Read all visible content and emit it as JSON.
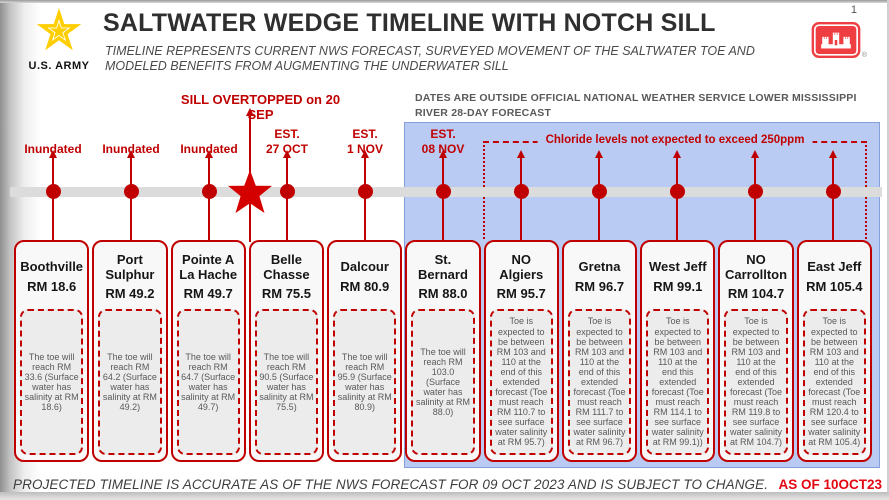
{
  "page": {
    "number": "1"
  },
  "header": {
    "army_label": "U.S. ARMY",
    "title": "SALTWATER WEDGE TIMELINE WITH NOTCH SILL",
    "subtitle_line1": "TIMELINE REPRESENTS CURRENT NWS FORECAST, SURVEYED MOVEMENT OF THE SALTWATER TOE AND",
    "subtitle_line2": "MODELED BENEFITS FROM AUGMENTING THE UNDERWATER SILL"
  },
  "annotations": {
    "sill_overtopped": "SILL OVERTOPPED on 20 SEP",
    "nws_note": "DATES ARE OUTSIDE OFFICIAL NATIONAL WEATHER SERVICE LOWER MISSISSIPPI RIVER 28-DAY FORECAST",
    "chloride_note": "Chloride levels not expected to exceed 250ppm"
  },
  "footer": {
    "disclaimer": "PROJECTED TIMELINE IS ACCURATE AS OF THE NWS FORECAST FOR 09 OCT 2023 AND IS SUBJECT TO CHANGE.",
    "as_of": "AS OF 10OCT23"
  },
  "colors": {
    "accent_red": "#c00000",
    "forecast_zone_blue": "#b9cbf2",
    "timeline_gray": "#dcdcdc",
    "army_gold": "#ffce00",
    "usace_red": "#ef3e42"
  },
  "timeline": {
    "locations": [
      {
        "name": "Boothville",
        "rm": "RM 18.6",
        "marker_label": "Inundated",
        "note": "The toe will reach RM 33.6 (Surface water has salinity at RM 18.6)"
      },
      {
        "name": "Port Sulphur",
        "rm": "RM 49.2",
        "marker_label": "Inundated",
        "note": "The toe will reach RM 64.2 (Surface water has salinity at RM 49.2)"
      },
      {
        "name": "Pointe A La Hache",
        "rm": "RM 49.7",
        "marker_label": "Inundated",
        "note": "The toe will reach RM 64.7 (Surface water has salinity at RM 49.7)"
      },
      {
        "name": "Belle Chasse",
        "rm": "RM 75.5",
        "marker_label": "EST.\n27 OCT",
        "note": "The toe will reach RM 90.5 (Surface water has salinity at RM 75.5)"
      },
      {
        "name": "Dalcour",
        "rm": "RM 80.9",
        "marker_label": "EST.\n1 NOV",
        "note": "The toe will reach RM 95.9 (Surface water has salinity at RM 80.9)"
      },
      {
        "name": "St. Bernard",
        "rm": "RM 88.0",
        "marker_label": "EST.\n08 NOV",
        "note": "The toe will reach RM 103.0 (Surface water has salinity at RM 88.0)"
      },
      {
        "name": "NO Algiers",
        "rm": "RM 95.7",
        "marker_label": "",
        "note": "Toe is expected to be between RM 103 and 110 at the end of this extended forecast (Toe must reach RM 110.7 to see surface water salinity at RM 95.7)"
      },
      {
        "name": "Gretna",
        "rm": "RM 96.7",
        "marker_label": "",
        "note": "Toe is expected to be between RM 103 and 110 at the end of this extended forecast (Toe must reach RM 111.7 to see surface water salinity at RM 96.7)"
      },
      {
        "name": "West Jeff",
        "rm": "RM 99.1",
        "marker_label": "",
        "note": "Toe is expected to be between RM 103 and 110 at the end this extended forecast (Toe must reach RM 114.1 to see surface water salinity at RM 99.1))"
      },
      {
        "name": "NO Carrollton",
        "rm": "RM 104.7",
        "marker_label": "",
        "note": "Toe is expected to be between RM 103 and 110 at the end of this extended forecast (Toe must reach RM 119.8 to see surface water salinity at RM 104.7)"
      },
      {
        "name": "East Jeff",
        "rm": "RM 105.4",
        "marker_label": "",
        "note": "Toe is expected to be between RM 103 and 110 at the end of this extended forecast (Toe must reach RM 120.4 to see surface water salinity at RM 105.4)"
      }
    ]
  }
}
